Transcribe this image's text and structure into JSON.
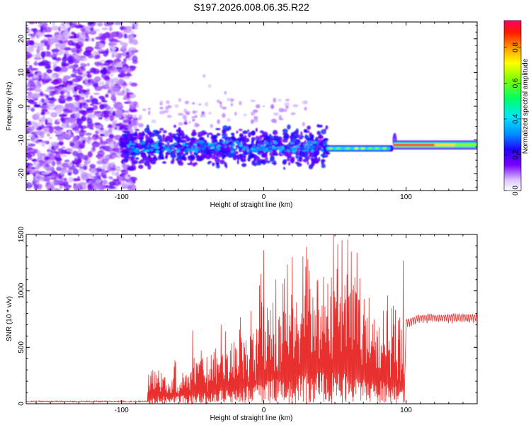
{
  "title": "S197.2026.008.06.35.R22",
  "colors": {
    "snr_line": "#e8312f",
    "axis": "#000000",
    "background": "#ffffff",
    "colormap": [
      "#ffffff",
      "#b48cff",
      "#7a00ff",
      "#2200ff",
      "#00cfff",
      "#00ff66",
      "#ffff00",
      "#ff9900",
      "#ff0000",
      "#ff0066"
    ]
  },
  "chart_data": [
    {
      "type": "heatmap",
      "name": "spectrogram",
      "xlabel": "Height of straight line (km)",
      "ylabel": "Frequency (Hz)",
      "xlim": [
        -167,
        150
      ],
      "ylim": [
        -25,
        25
      ],
      "xticks": [
        -100,
        0,
        100
      ],
      "xtick_labels": [
        "-100",
        "0",
        "100"
      ],
      "yticks": [
        -20,
        -10,
        0,
        10,
        20
      ],
      "ytick_labels": [
        "-20",
        "-10",
        "0",
        "10",
        "20"
      ],
      "colorbar": {
        "label": "Normalized spectral amplitude",
        "range": [
          0,
          0.95
        ],
        "ticks": [
          0.0,
          0.2,
          0.4,
          0.6,
          0.8
        ],
        "tick_labels": [
          "0.0",
          "0.2",
          "0.4",
          "0.6",
          "0.8"
        ]
      },
      "features": [
        {
          "label": "noise",
          "x_range": [
            -167,
            -98
          ],
          "freq_range": [
            -25,
            25
          ],
          "amplitude": 0.12
        },
        {
          "label": "signal-onset",
          "x_range": [
            -100,
            45
          ],
          "center_freq": -12,
          "freq_spread": 4,
          "amplitude": 0.3
        },
        {
          "label": "narrowband",
          "x_range": [
            45,
            88
          ],
          "center_freq": -12.5,
          "amplitude": 0.6
        },
        {
          "label": "strong-tone",
          "x_range": [
            92,
            150
          ],
          "center_freq": -11.5,
          "amplitude": 0.85
        }
      ]
    },
    {
      "type": "line",
      "name": "snr",
      "xlabel": "Height of straight line (km)",
      "ylabel": "SNR (10 * v/v)",
      "xlim": [
        -167,
        150
      ],
      "ylim": [
        0,
        1500
      ],
      "xticks": [
        -100,
        0,
        100
      ],
      "xtick_labels": [
        "-100",
        "0",
        "100"
      ],
      "yticks": [
        0,
        500,
        1000,
        1500
      ],
      "ytick_labels": [
        "0",
        "500",
        "1000",
        "1500"
      ],
      "series": [
        {
          "name": "SNR",
          "envelope_x": [
            -167,
            -100,
            -82,
            -80,
            -60,
            -40,
            -20,
            -5,
            0,
            10,
            20,
            30,
            40,
            50,
            60,
            70,
            80,
            90,
            97,
            99,
            100,
            110,
            120,
            130,
            140,
            150
          ],
          "envelope_y": [
            20,
            25,
            40,
            180,
            200,
            290,
            400,
            520,
            600,
            650,
            720,
            760,
            800,
            820,
            780,
            720,
            650,
            560,
            500,
            150,
            710,
            760,
            760,
            760,
            760,
            760
          ],
          "peaks_x": [
            -81,
            -50,
            -30,
            -2,
            0,
            20,
            30,
            49,
            55,
            98
          ],
          "peaks_y": [
            260,
            650,
            700,
            1150,
            1360,
            1300,
            1390,
            1500,
            1450,
            1270
          ]
        }
      ]
    }
  ]
}
